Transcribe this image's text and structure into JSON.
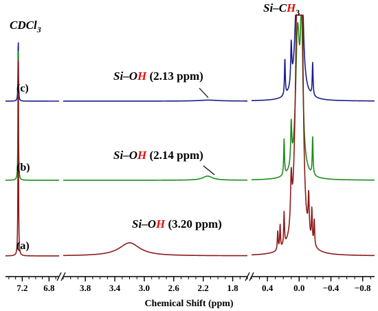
{
  "chart_data": {
    "type": "line",
    "title": "",
    "xlabel": "Chemical Shift (ppm)",
    "ylabel": "",
    "x_reversed": true,
    "axis_break": true,
    "grid": false,
    "legend": "none",
    "x_segments": [
      {
        "xlim": [
          7.45,
          6.65
        ],
        "ticks": [
          "7.2",
          "6.8"
        ],
        "tick_values": [
          7.2,
          6.8
        ]
      },
      {
        "xlim": [
          4.1,
          1.6
        ],
        "ticks": [
          "3.8",
          "3.4",
          "3.0",
          "2.6",
          "2.2",
          "1.8"
        ],
        "tick_values": [
          3.8,
          3.4,
          3.0,
          2.6,
          2.2,
          1.8
        ]
      },
      {
        "xlim": [
          0.6,
          -0.95
        ],
        "ticks": [
          "0.4",
          "0.0",
          "−0.4",
          "−0.8"
        ],
        "tick_values": [
          0.4,
          0.0,
          -0.4,
          -0.8
        ]
      }
    ],
    "series": [
      {
        "name": "(c)",
        "color": "#1a1a8c",
        "peaks": [
          {
            "x": 7.26,
            "height": 96,
            "width": 0.004
          },
          {
            "x": 2.13,
            "height": 1.5,
            "width": 0.15
          },
          {
            "x": 0.18,
            "height": 54,
            "width": 0.006
          },
          {
            "x": 0.1,
            "height": 60,
            "width": 0.008
          },
          {
            "x": 0.02,
            "height": 200,
            "width": 0.03
          },
          {
            "x": -0.03,
            "height": 200,
            "width": 0.02
          },
          {
            "x": -0.17,
            "height": 48,
            "width": 0.006
          }
        ]
      },
      {
        "name": "(b)",
        "color": "#1a8c1a",
        "peaks": [
          {
            "x": 7.26,
            "height": 212,
            "width": 0.004
          },
          {
            "x": 2.14,
            "height": 6,
            "width": 0.08
          },
          {
            "x": 0.19,
            "height": 52,
            "width": 0.006
          },
          {
            "x": 0.1,
            "height": 60,
            "width": 0.008
          },
          {
            "x": 0.02,
            "height": 200,
            "width": 0.03
          },
          {
            "x": -0.03,
            "height": 200,
            "width": 0.02
          },
          {
            "x": -0.17,
            "height": 55,
            "width": 0.006
          }
        ]
      },
      {
        "name": "(a)",
        "color": "#8c1a1a",
        "peaks": [
          {
            "x": 7.26,
            "height": 320,
            "width": 0.004
          },
          {
            "x": 3.2,
            "height": 19,
            "width": 0.17
          },
          {
            "x": 0.27,
            "height": 28,
            "width": 0.006
          },
          {
            "x": 0.24,
            "height": 35,
            "width": 0.006
          },
          {
            "x": 0.19,
            "height": 48,
            "width": 0.006
          },
          {
            "x": 0.1,
            "height": 70,
            "width": 0.01
          },
          {
            "x": 0.02,
            "height": 400,
            "width": 0.03
          },
          {
            "x": -0.03,
            "height": 400,
            "width": 0.02
          },
          {
            "x": -0.12,
            "height": 58,
            "width": 0.008
          },
          {
            "x": -0.16,
            "height": 48,
            "width": 0.006
          },
          {
            "x": -0.19,
            "height": 38,
            "width": 0.006
          }
        ]
      }
    ],
    "annotations": {
      "solvent": {
        "a": "CDCl",
        "b": "3"
      },
      "methyl": {
        "a": "Si",
        "b": "–C",
        "c": "H",
        "d": "3"
      },
      "silanol": [
        {
          "a": "Si",
          "b": "–O",
          "c": "H",
          "d": " (2.13 ppm)"
        },
        {
          "a": "Si",
          "b": "–O",
          "c": "H",
          "d": " (2.14 ppm)"
        },
        {
          "a": "Si",
          "b": "–O",
          "c": "H",
          "d": " (3.20 ppm)"
        }
      ],
      "highlight_color": "#e01010"
    }
  }
}
